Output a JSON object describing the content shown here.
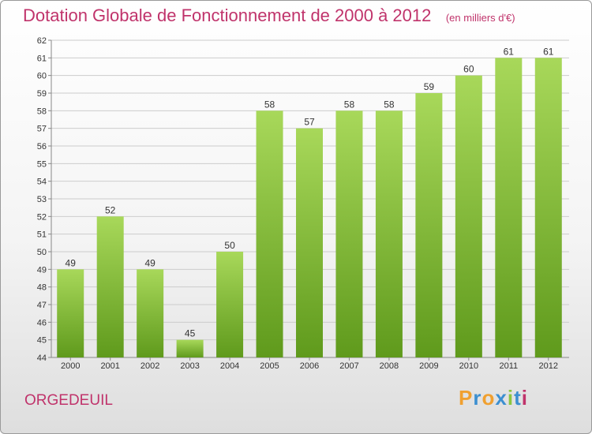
{
  "header": {
    "title": "Dotation Globale de Fonctionnement de 2000 à 2012",
    "unit": "(en milliers d'€)"
  },
  "commune": "ORGEDEUIL",
  "brand": {
    "letters": [
      "P",
      "r",
      "o",
      "x",
      "i",
      "t",
      "i"
    ],
    "colors": [
      "#f0a030",
      "#3c8fd0",
      "#f0a030",
      "#3c8fd0",
      "#8cc63f",
      "#3c8fd0",
      "#c0336b"
    ]
  },
  "colors": {
    "bar_light": "#a8d85a",
    "bar_dark": "#5f9a1c",
    "axis_text": "#333333",
    "grid": "#cccccc"
  },
  "chart_data": {
    "type": "bar",
    "title": "Dotation Globale de Fonctionnement de 2000 à 2012",
    "subtitle": "(en milliers d'€)",
    "categories": [
      "2000",
      "2001",
      "2002",
      "2003",
      "2004",
      "2005",
      "2006",
      "2007",
      "2008",
      "2009",
      "2010",
      "2011",
      "2012"
    ],
    "values": [
      49,
      52,
      49,
      45,
      50,
      58,
      57,
      58,
      58,
      59,
      60,
      61,
      61
    ],
    "ylim": [
      44,
      62
    ],
    "yticks": [
      44,
      45,
      46,
      47,
      48,
      49,
      50,
      51,
      52,
      53,
      54,
      55,
      56,
      57,
      58,
      59,
      60,
      61,
      62
    ],
    "grid": true
  }
}
